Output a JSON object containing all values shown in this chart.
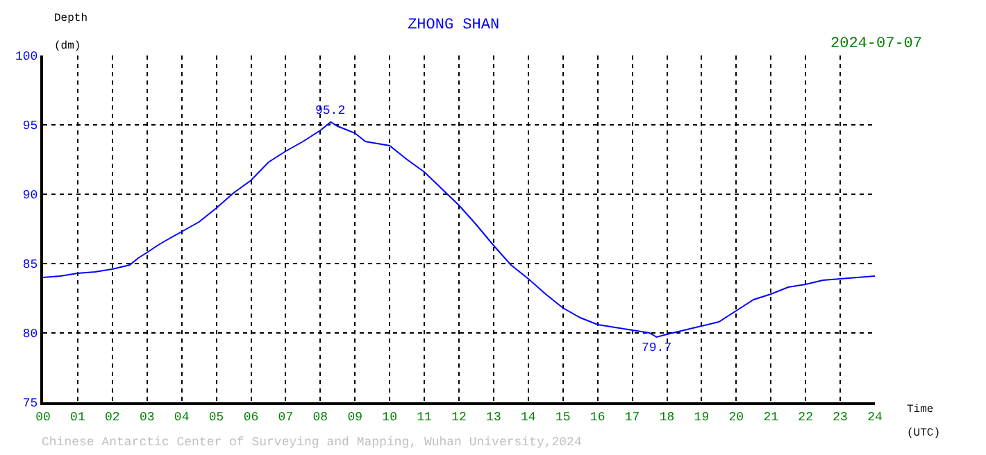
{
  "chart_data": {
    "type": "line",
    "title": "ZHONG SHAN",
    "xlabel": "Time (UTC)",
    "ylabel": "Depth (dm)",
    "x": [
      0,
      0.5,
      1,
      1.5,
      2,
      2.5,
      2.75,
      3,
      3.3,
      3.5,
      4,
      4.5,
      5,
      5.5,
      6,
      6.5,
      7,
      7.5,
      8,
      8.3,
      8.5,
      8.8,
      9,
      9.3,
      10,
      10.5,
      11,
      11.5,
      12,
      12.5,
      13,
      13.5,
      14,
      14.5,
      15,
      15.5,
      16,
      16.5,
      17,
      17.5,
      17.7,
      18,
      18.5,
      19,
      19.5,
      20,
      20.5,
      21,
      21.5,
      22,
      22.5,
      23,
      23.5,
      24
    ],
    "series": [
      {
        "color": "#0000ff",
        "values": [
          84.0,
          84.1,
          84.3,
          84.4,
          84.6,
          84.9,
          85.4,
          85.8,
          86.3,
          86.6,
          87.3,
          88.0,
          89.0,
          90.1,
          91.0,
          92.3,
          93.1,
          93.8,
          94.6,
          95.2,
          94.9,
          94.6,
          94.4,
          93.8,
          93.5,
          92.5,
          91.6,
          90.4,
          89.2,
          87.8,
          86.3,
          84.9,
          83.9,
          82.8,
          81.8,
          81.1,
          80.6,
          80.4,
          80.2,
          80.0,
          79.7,
          79.9,
          80.2,
          80.5,
          80.8,
          81.6,
          82.4,
          82.8,
          83.3,
          83.5,
          83.8,
          83.9,
          84.0,
          84.1
        ]
      }
    ],
    "xlim": [
      0,
      24
    ],
    "ylim": [
      75,
      100
    ],
    "xticks": [
      {
        "value": 0,
        "label": "00"
      },
      {
        "value": 1,
        "label": "01"
      },
      {
        "value": 2,
        "label": "02"
      },
      {
        "value": 3,
        "label": "03"
      },
      {
        "value": 4,
        "label": "04"
      },
      {
        "value": 5,
        "label": "05"
      },
      {
        "value": 6,
        "label": "06"
      },
      {
        "value": 7,
        "label": "07"
      },
      {
        "value": 8,
        "label": "08"
      },
      {
        "value": 9,
        "label": "09"
      },
      10,
      11,
      12,
      13,
      14,
      15,
      16,
      17,
      18,
      19,
      20,
      21,
      22,
      23,
      24
    ],
    "yticks": [
      75,
      80,
      85,
      90,
      95,
      100
    ],
    "grid": true,
    "marker": "none",
    "line_style": "solid",
    "annotations": [
      {
        "text": "95.2",
        "x": 8.3,
        "y": 95.2
      },
      {
        "text": "79.7",
        "x": 17.7,
        "y": 79.7
      },
      "2024-07-07",
      "Chinese Antarctic Center of Surveying and Mapping, Wuhan University,2024"
    ]
  }
}
